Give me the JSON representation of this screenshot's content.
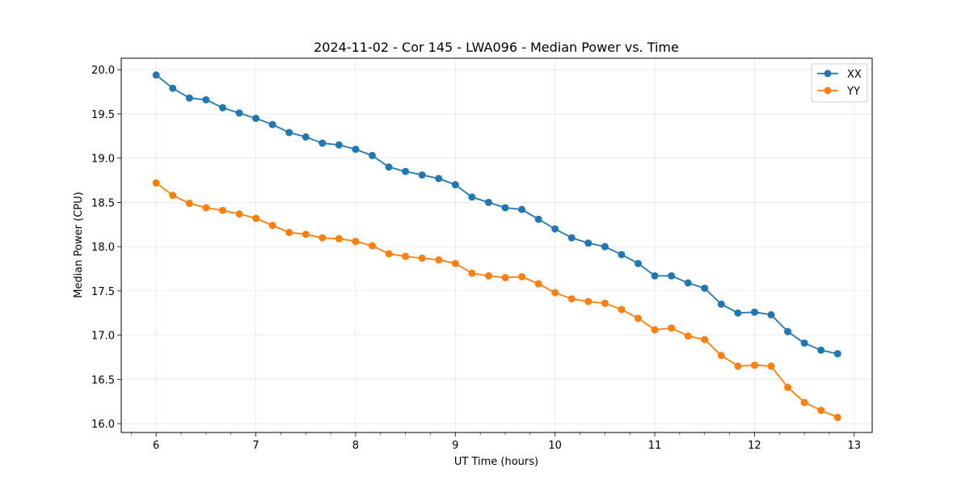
{
  "chart_data": {
    "type": "line",
    "title": "2024-11-02 - Cor 145 - LWA096 - Median Power vs. Time",
    "xlabel": "UT Time (hours)",
    "ylabel": "Median Power (CPU)",
    "xlim": [
      5.65,
      13.18
    ],
    "ylim": [
      15.9,
      20.13
    ],
    "xticks": [
      6,
      7,
      8,
      9,
      10,
      11,
      12,
      13
    ],
    "xtick_labels": [
      "6",
      "7",
      "8",
      "9",
      "10",
      "11",
      "12",
      "13"
    ],
    "xminor_step": 0.25,
    "yticks": [
      16.0,
      16.5,
      17.0,
      17.5,
      18.0,
      18.5,
      19.0,
      19.5,
      20.0
    ],
    "ytick_labels": [
      "16.0",
      "16.5",
      "17.0",
      "17.5",
      "18.0",
      "18.5",
      "19.0",
      "19.5",
      "20.0"
    ],
    "grid": true,
    "legend_position": "top-right",
    "x": [
      6.0,
      6.1667,
      6.3333,
      6.5,
      6.6667,
      6.8333,
      7.0,
      7.1667,
      7.3333,
      7.5,
      7.6667,
      7.8333,
      8.0,
      8.1667,
      8.3333,
      8.5,
      8.6667,
      8.8333,
      9.0,
      9.1667,
      9.3333,
      9.5,
      9.6667,
      9.8333,
      10.0,
      10.1667,
      10.3333,
      10.5,
      10.6667,
      10.8333,
      11.0,
      11.1667,
      11.3333,
      11.5,
      11.6667,
      11.8333,
      12.0,
      12.1667,
      12.3333,
      12.5,
      12.6667,
      12.8333
    ],
    "series": [
      {
        "name": "XX",
        "color": "#1f77b4",
        "values": [
          19.94,
          19.79,
          19.68,
          19.66,
          19.57,
          19.51,
          19.45,
          19.38,
          19.29,
          19.24,
          19.17,
          19.15,
          19.1,
          19.03,
          18.9,
          18.85,
          18.81,
          18.77,
          18.7,
          18.56,
          18.5,
          18.44,
          18.42,
          18.31,
          18.2,
          18.1,
          18.04,
          18.0,
          17.91,
          17.81,
          17.67,
          17.67,
          17.59,
          17.53,
          17.35,
          17.25,
          17.26,
          17.23,
          17.04,
          16.91,
          16.83,
          16.79
        ]
      },
      {
        "name": "YY",
        "color": "#ff7f0e",
        "values": [
          18.72,
          18.58,
          18.49,
          18.44,
          18.41,
          18.37,
          18.32,
          18.24,
          18.16,
          18.14,
          18.1,
          18.09,
          18.06,
          18.01,
          17.92,
          17.89,
          17.87,
          17.85,
          17.81,
          17.7,
          17.67,
          17.65,
          17.66,
          17.58,
          17.48,
          17.41,
          17.38,
          17.36,
          17.29,
          17.19,
          17.06,
          17.08,
          16.99,
          16.95,
          16.77,
          16.65,
          16.66,
          16.65,
          16.41,
          16.24,
          16.15,
          16.07
        ]
      }
    ]
  }
}
